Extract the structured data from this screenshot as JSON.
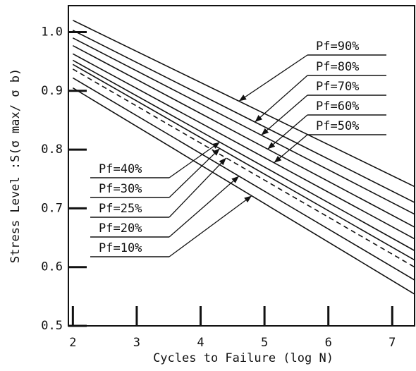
{
  "chart_data": {
    "type": "line",
    "xlabel": "Cycles to Failure (log N)",
    "ylabel": "Stress Level :S(σ max/ σ b)",
    "x": [
      2,
      7.35
    ],
    "xlim": [
      1.93,
      7.35
    ],
    "ylim": [
      0.5,
      1.045
    ],
    "xticks": [
      2,
      3,
      4,
      5,
      6,
      7
    ],
    "yticks": [
      0.5,
      0.6,
      0.7,
      0.8,
      0.9,
      {
        "value": 1,
        "label": "1.0"
      }
    ],
    "series": [
      {
        "name": "Pf=90%",
        "color": "#111",
        "values": [
          1.02,
          0.737
        ]
      },
      {
        "name": "Pf=80%",
        "color": "#111",
        "values": [
          1.003,
          0.71
        ]
      },
      {
        "name": "Pf=70%",
        "color": "#111",
        "values": [
          0.99,
          0.69
        ]
      },
      {
        "name": "Pf=60%",
        "color": "#111",
        "values": [
          0.977,
          0.668
        ]
      },
      {
        "name": "Pf=50%",
        "color": "#111",
        "values": [
          0.963,
          0.648
        ]
      },
      {
        "name": "Pf=40%",
        "color": "#111",
        "values": [
          0.952,
          0.628
        ]
      },
      {
        "name": "Pf=30%",
        "color": "#111",
        "values": [
          0.945,
          0.612
        ]
      },
      {
        "name": "Pf=25%",
        "color": "#111",
        "dashed": true,
        "values": [
          0.937,
          0.6
        ]
      },
      {
        "name": "Pf=20%",
        "color": "#111",
        "values": [
          0.922,
          0.578
        ]
      },
      {
        "name": "Pf=10%",
        "color": "#111",
        "values": [
          0.905,
          0.554
        ]
      }
    ]
  }
}
